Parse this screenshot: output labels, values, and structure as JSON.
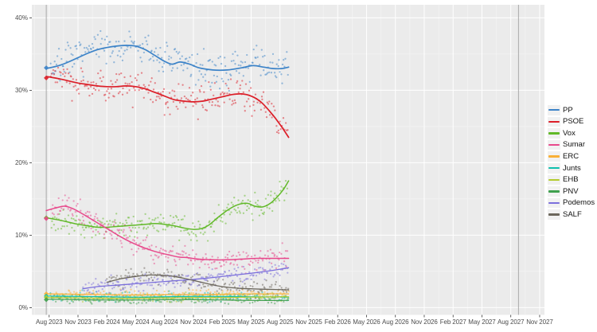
{
  "chart_data": {
    "type": "scatter",
    "title": "",
    "description": "Opinion polling for the next Spanish general election — party vote share (%) over time with smoothed trend lines",
    "x_axis": {
      "tick_labels": [
        "Aug 2023",
        "Nov 2023",
        "Feb 2024",
        "May 2024",
        "Aug 2024",
        "Nov 2024",
        "Feb 2025",
        "May 2025",
        "Aug 2025",
        "Nov 2025",
        "Feb 2026",
        "May 2026",
        "Aug 2026",
        "Nov 2026",
        "Feb 2027",
        "May 2027",
        "Aug 2027",
        "Nov 2027"
      ],
      "tick_months": [
        0,
        3,
        6,
        9,
        12,
        15,
        18,
        21,
        24,
        27,
        30,
        33,
        36,
        39,
        42,
        45,
        48,
        51
      ],
      "domain_months": [
        -1.8,
        51.5
      ],
      "minor_offset": 1.5
    },
    "y_axis": {
      "tick_labels": [
        "0%",
        "10%",
        "20%",
        "30%",
        "40%"
      ],
      "tick_values": [
        0,
        10,
        20,
        30,
        40
      ],
      "domain": [
        -1.0,
        41.8
      ],
      "minor_values": [
        5,
        15,
        25,
        35
      ]
    },
    "panel": {
      "bg": "#ebebeb",
      "grid_major": "#ffffff",
      "grid_minor": "#f4f4f4",
      "tick_color": "#333333"
    },
    "reference_lines": {
      "color": "#a9a9a9",
      "election_2023_month": -0.3,
      "deadline_month": 48.8
    },
    "legend": {
      "position": "right"
    },
    "scatter_seed": 7,
    "point_radius": 1.15,
    "point_opacity": 0.5,
    "data_end_month": 24.9,
    "series": [
      {
        "name": "PP",
        "color": "#3c83c8",
        "election_result": 33.1,
        "line_width": 1.7,
        "scatter_step": 0.1,
        "scatter_sd": 1.15,
        "trend": [
          [
            -0.3,
            33.0
          ],
          [
            1,
            33.4
          ],
          [
            2,
            33.9
          ],
          [
            3,
            34.5
          ],
          [
            4,
            35.1
          ],
          [
            5,
            35.6
          ],
          [
            6,
            35.9
          ],
          [
            7,
            36.1
          ],
          [
            8,
            36.2
          ],
          [
            9,
            36.1
          ],
          [
            10,
            35.6
          ],
          [
            11,
            34.8
          ],
          [
            12,
            34.0
          ],
          [
            12.8,
            33.6
          ],
          [
            13.6,
            33.9
          ],
          [
            14.6,
            33.6
          ],
          [
            15.6,
            33.1
          ],
          [
            17,
            32.8
          ],
          [
            18.5,
            32.8
          ],
          [
            20,
            33.1
          ],
          [
            21.2,
            33.4
          ],
          [
            22.3,
            33.2
          ],
          [
            23.3,
            33.0
          ],
          [
            24.2,
            33.0
          ],
          [
            24.9,
            33.2
          ]
        ]
      },
      {
        "name": "PSOE",
        "color": "#dc1e28",
        "election_result": 31.7,
        "line_width": 1.7,
        "scatter_step": 0.1,
        "scatter_sd": 1.15,
        "trend": [
          [
            -0.3,
            31.9
          ],
          [
            1,
            31.6
          ],
          [
            2,
            31.3
          ],
          [
            3,
            31.0
          ],
          [
            4,
            30.8
          ],
          [
            5,
            30.6
          ],
          [
            6,
            30.5
          ],
          [
            7,
            30.5
          ],
          [
            8,
            30.6
          ],
          [
            9,
            30.5
          ],
          [
            10,
            30.2
          ],
          [
            11,
            29.7
          ],
          [
            12,
            29.2
          ],
          [
            13,
            28.7
          ],
          [
            14,
            28.5
          ],
          [
            15,
            28.4
          ],
          [
            16,
            28.5
          ],
          [
            17,
            28.8
          ],
          [
            18,
            29.1
          ],
          [
            19,
            29.4
          ],
          [
            20,
            29.5
          ],
          [
            21,
            29.2
          ],
          [
            22,
            28.4
          ],
          [
            23,
            27.0
          ],
          [
            24,
            25.3
          ],
          [
            24.9,
            23.5
          ]
        ]
      },
      {
        "name": "Vox",
        "color": "#61b928",
        "election_result": 12.4,
        "line_width": 1.5,
        "scatter_step": 0.1,
        "scatter_sd": 0.85,
        "trend": [
          [
            -0.3,
            12.4
          ],
          [
            1,
            12.1
          ],
          [
            2,
            11.8
          ],
          [
            3,
            11.5
          ],
          [
            4,
            11.3
          ],
          [
            5,
            11.1
          ],
          [
            6,
            11.1
          ],
          [
            7,
            11.2
          ],
          [
            8,
            11.3
          ],
          [
            9,
            11.4
          ],
          [
            10,
            11.5
          ],
          [
            11,
            11.6
          ],
          [
            12,
            11.5
          ],
          [
            13,
            11.3
          ],
          [
            14,
            11.0
          ],
          [
            15,
            10.8
          ],
          [
            15.8,
            10.9
          ],
          [
            16.6,
            11.4
          ],
          [
            17.6,
            12.5
          ],
          [
            18.6,
            13.5
          ],
          [
            19.6,
            14.2
          ],
          [
            20.6,
            14.4
          ],
          [
            21.4,
            14.0
          ],
          [
            22.2,
            13.9
          ],
          [
            23,
            14.4
          ],
          [
            23.8,
            15.4
          ],
          [
            24.4,
            16.4
          ],
          [
            24.9,
            17.5
          ]
        ]
      },
      {
        "name": "Sumar",
        "color": "#e8488b",
        "election_result": 12.3,
        "line_width": 1.5,
        "scatter_step": 0.1,
        "scatter_sd": 0.8,
        "trend": [
          [
            -0.3,
            13.4
          ],
          [
            0.8,
            13.8
          ],
          [
            1.6,
            14.0
          ],
          [
            2.4,
            13.7
          ],
          [
            3.4,
            13.0
          ],
          [
            4.4,
            12.2
          ],
          [
            5.4,
            11.4
          ],
          [
            6.4,
            10.6
          ],
          [
            7.4,
            9.8
          ],
          [
            8.4,
            9.1
          ],
          [
            9.4,
            8.5
          ],
          [
            10.4,
            8.0
          ],
          [
            11.4,
            7.6
          ],
          [
            12.4,
            7.3
          ],
          [
            13.4,
            7.0
          ],
          [
            14.4,
            6.9
          ],
          [
            15.5,
            6.7
          ],
          [
            17,
            6.6
          ],
          [
            18.5,
            6.6
          ],
          [
            20,
            6.7
          ],
          [
            21.5,
            6.8
          ],
          [
            23,
            6.8
          ],
          [
            24.9,
            6.8
          ]
        ]
      },
      {
        "name": "ERC",
        "color": "#f9b036",
        "election_result": 1.9,
        "line_width": 1.2,
        "scatter_step": 0.16,
        "scatter_sd": 0.3,
        "trend": [
          [
            -0.3,
            1.9
          ],
          [
            3,
            1.85
          ],
          [
            6,
            1.8
          ],
          [
            9,
            1.75
          ],
          [
            12,
            1.8
          ],
          [
            15,
            1.8
          ],
          [
            18,
            1.85
          ],
          [
            21,
            1.9
          ],
          [
            24.9,
            1.9
          ]
        ]
      },
      {
        "name": "Junts",
        "color": "#0fbfae",
        "election_result": 1.6,
        "line_width": 1.2,
        "scatter_step": 0.16,
        "scatter_sd": 0.32,
        "trend": [
          [
            -0.3,
            1.6
          ],
          [
            3,
            1.55
          ],
          [
            6,
            1.5
          ],
          [
            9,
            1.45
          ],
          [
            12,
            1.5
          ],
          [
            15,
            1.55
          ],
          [
            18,
            1.55
          ],
          [
            21,
            1.5
          ],
          [
            24.9,
            1.45
          ]
        ]
      },
      {
        "name": "EHB",
        "color": "#b3cb2d",
        "election_result": 1.4,
        "line_width": 1.2,
        "scatter_step": 0.16,
        "scatter_sd": 0.28,
        "trend": [
          [
            -0.3,
            1.4
          ],
          [
            3,
            1.35
          ],
          [
            6,
            1.3
          ],
          [
            9,
            1.3
          ],
          [
            12,
            1.35
          ],
          [
            15,
            1.4
          ],
          [
            18,
            1.4
          ],
          [
            21,
            1.45
          ],
          [
            24.9,
            1.5
          ]
        ]
      },
      {
        "name": "PNV",
        "color": "#3fa04e",
        "election_result": 1.1,
        "line_width": 1.2,
        "scatter_step": 0.16,
        "scatter_sd": 0.28,
        "trend": [
          [
            -0.3,
            1.15
          ],
          [
            3,
            1.1
          ],
          [
            6,
            1.05
          ],
          [
            9,
            1.05
          ],
          [
            12,
            1.1
          ],
          [
            15,
            1.1
          ],
          [
            18,
            1.05
          ],
          [
            21,
            1.0
          ],
          [
            24.9,
            1.0
          ]
        ]
      },
      {
        "name": "Podemos",
        "color": "#7b6fdc",
        "election_result": null,
        "line_width": 1.3,
        "scatter_step": 0.11,
        "scatter_sd": 0.6,
        "trend": [
          [
            3.5,
            2.6
          ],
          [
            5,
            2.9
          ],
          [
            7,
            3.1
          ],
          [
            9,
            3.3
          ],
          [
            11,
            3.5
          ],
          [
            13,
            3.7
          ],
          [
            15,
            3.9
          ],
          [
            17,
            4.15
          ],
          [
            19,
            4.45
          ],
          [
            21,
            4.75
          ],
          [
            22.5,
            5.0
          ],
          [
            23.5,
            5.2
          ],
          [
            24.9,
            5.5
          ]
        ]
      },
      {
        "name": "SALF",
        "color": "#6b665c",
        "election_result": null,
        "line_width": 1.3,
        "scatter_step": 0.12,
        "scatter_sd": 0.6,
        "trend": [
          [
            6,
            3.5
          ],
          [
            7.5,
            4.0
          ],
          [
            9,
            4.3
          ],
          [
            10.5,
            4.5
          ],
          [
            12,
            4.45
          ],
          [
            13,
            4.3
          ],
          [
            14,
            4.05
          ],
          [
            15,
            3.75
          ],
          [
            16,
            3.45
          ],
          [
            17,
            3.15
          ],
          [
            18,
            2.9
          ],
          [
            19,
            2.75
          ],
          [
            20,
            2.65
          ],
          [
            21,
            2.6
          ],
          [
            22,
            2.55
          ],
          [
            23.5,
            2.5
          ],
          [
            24.9,
            2.45
          ]
        ]
      }
    ]
  }
}
